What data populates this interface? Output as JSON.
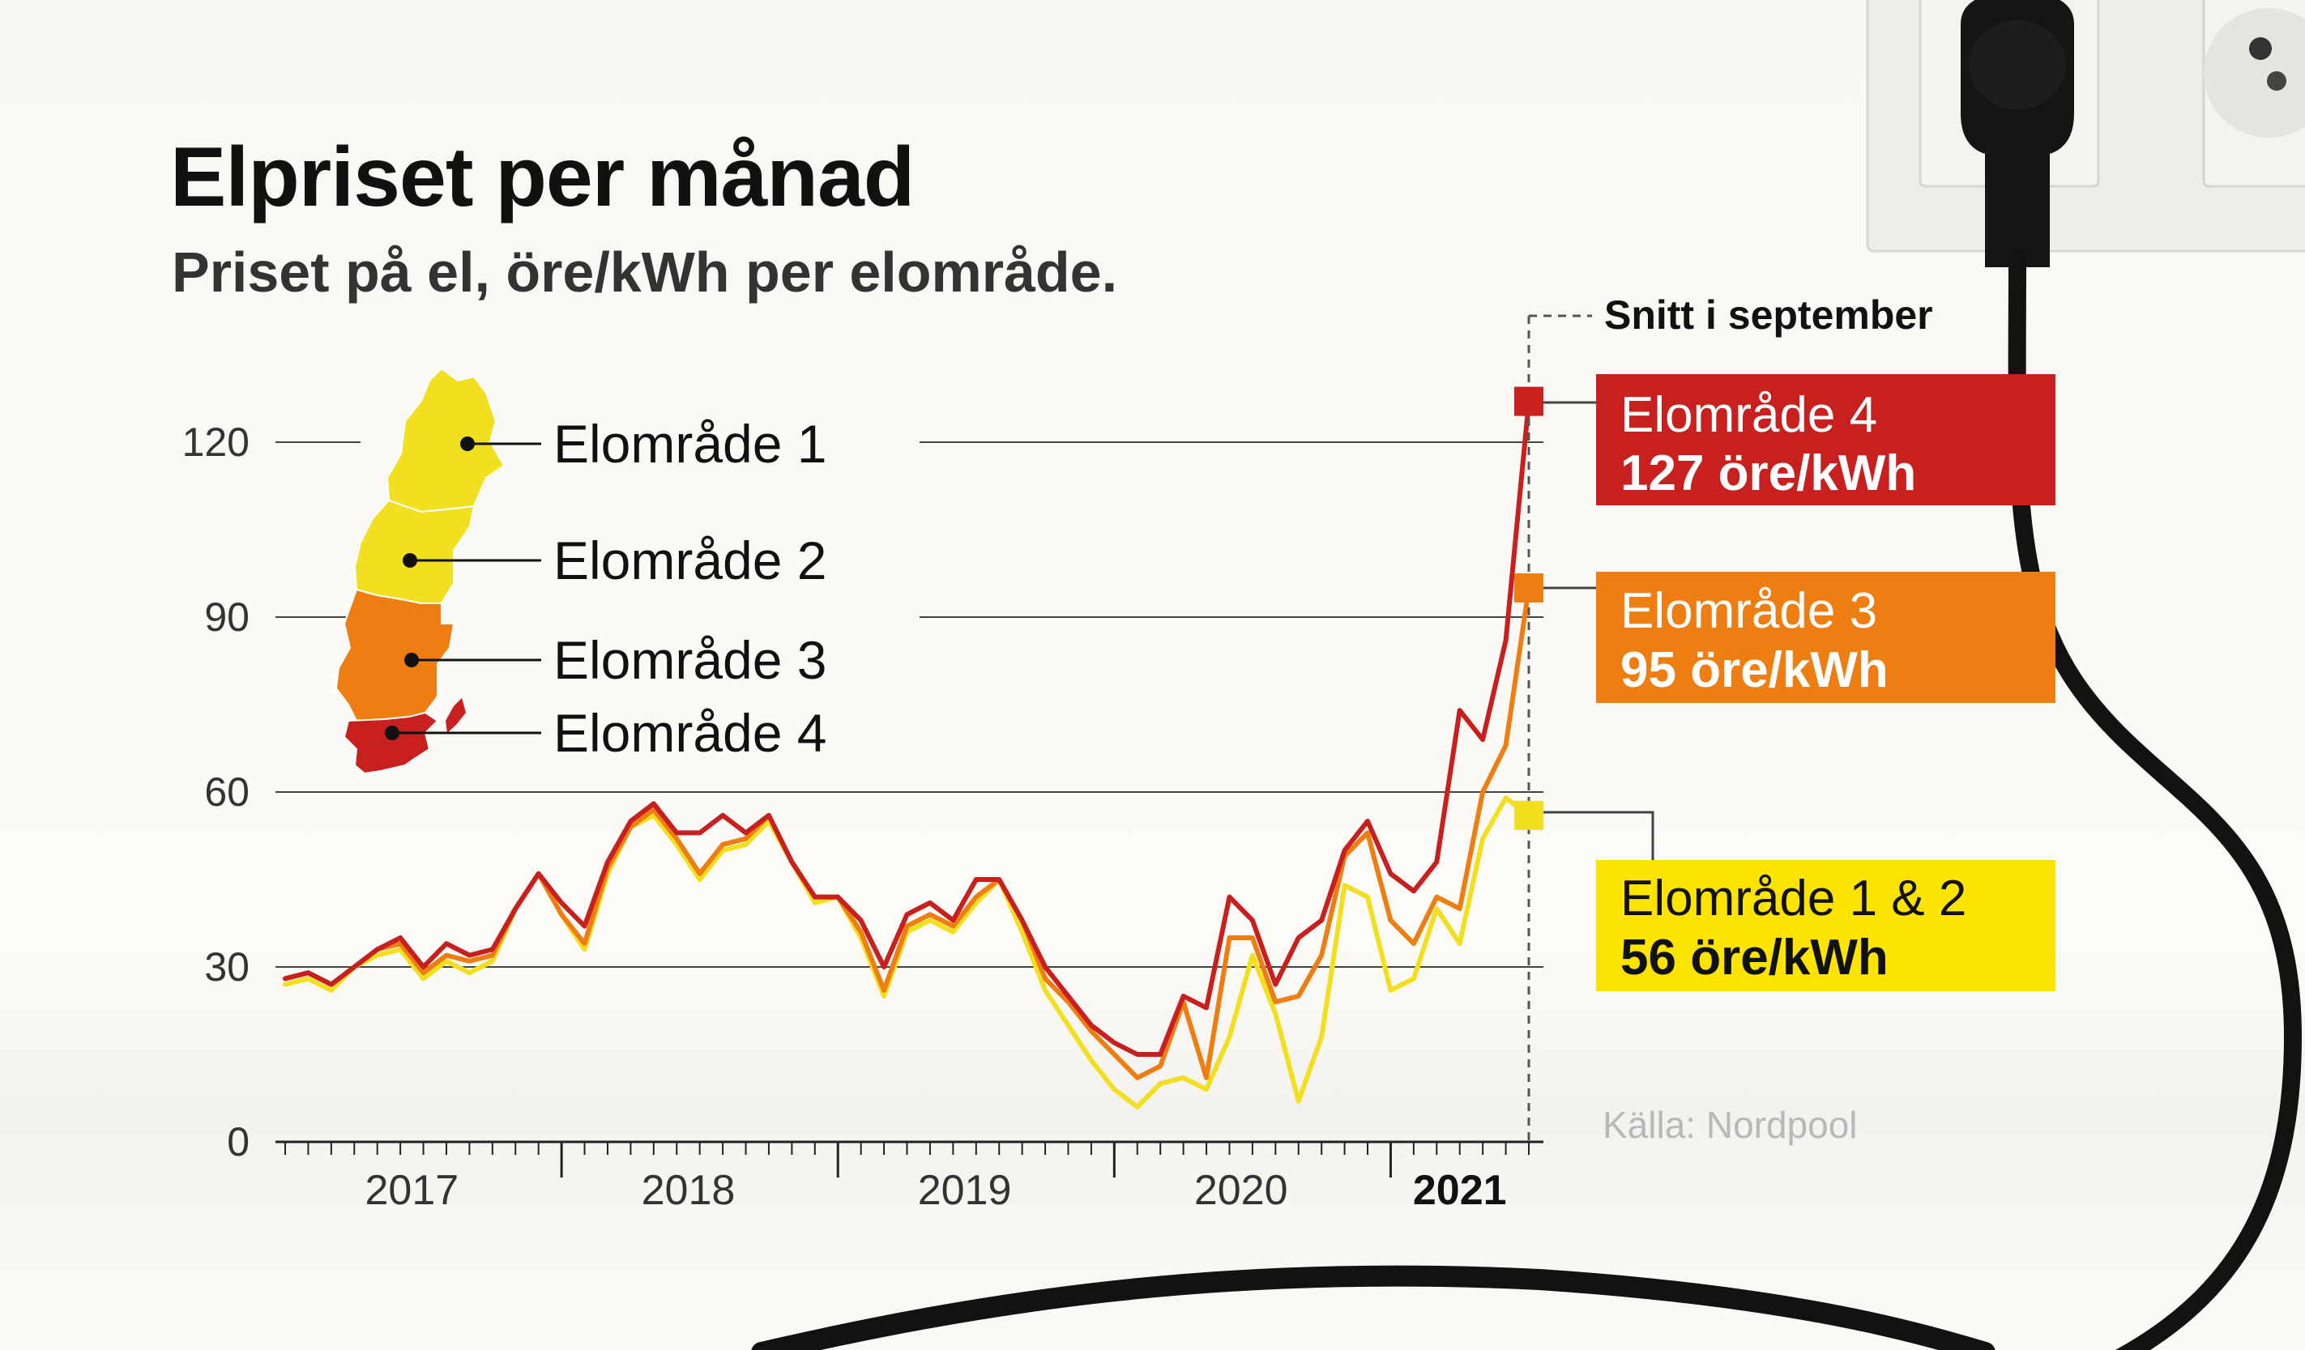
{
  "title": "Elpriset per månad",
  "subtitle": "Priset på el, öre/kWh per elområde.",
  "source": "Källa: Nordpool",
  "snitt_label": "Snitt i september",
  "map_labels": [
    "Elområde 1",
    "Elområde 2",
    "Elområde 3",
    "Elområde 4"
  ],
  "callouts": [
    {
      "area": "Elområde 4",
      "price": "127 öre/kWh",
      "bg": "#c8201f",
      "area_color": "#ffffff",
      "price_color": "#ffffff"
    },
    {
      "area": "Elområde 3",
      "price": "95 öre/kWh",
      "bg": "#ee7d12",
      "area_color": "#ffffff",
      "price_color": "#ffffff"
    },
    {
      "area": "Elområde 1 & 2",
      "price": "56 öre/kWh",
      "bg": "#fce300",
      "area_color": "#111111",
      "price_color": "#111111"
    }
  ],
  "colors": {
    "se12": "#f2e020",
    "se3": "#ee7d12",
    "se4": "#c8201f"
  },
  "icons": [
    "sweden-map-icon",
    "wall-outlet-icon",
    "power-plug-icon",
    "power-cable-icon"
  ],
  "chart_data": {
    "type": "line",
    "ylim": [
      0,
      130
    ],
    "yticks": [
      0,
      30,
      60,
      90,
      120
    ],
    "year_labels": [
      "2017",
      "2018",
      "2019",
      "2020",
      "2021"
    ],
    "x_start": "2017-01",
    "x_end": "2021-09",
    "series": [
      {
        "name": "Elområde 4",
        "color": "#c8201f",
        "values": [
          28,
          29,
          27,
          30,
          33,
          35,
          30,
          34,
          32,
          33,
          40,
          46,
          41,
          37,
          48,
          55,
          58,
          53,
          53,
          56,
          53,
          56,
          48,
          42,
          42,
          38,
          30,
          39,
          41,
          38,
          45,
          45,
          38,
          30,
          25,
          20,
          17,
          15,
          15,
          25,
          23,
          42,
          38,
          27,
          35,
          38,
          50,
          55,
          46,
          43,
          48,
          74,
          69,
          86,
          127
        ]
      },
      {
        "name": "Elområde 3",
        "color": "#ee7d12",
        "values": [
          28,
          29,
          27,
          30,
          33,
          34,
          29,
          32,
          31,
          32,
          40,
          46,
          39,
          34,
          47,
          54,
          57,
          52,
          46,
          51,
          52,
          56,
          48,
          42,
          42,
          36,
          26,
          37,
          39,
          37,
          42,
          45,
          38,
          28,
          24,
          19,
          15,
          11,
          13,
          24,
          11,
          35,
          35,
          24,
          25,
          32,
          49,
          53,
          38,
          34,
          42,
          40,
          60,
          68,
          95
        ]
      },
      {
        "name": "Elområde 1 & 2",
        "color": "#f2e020",
        "values": [
          27,
          28,
          26,
          30,
          32,
          33,
          28,
          31,
          29,
          31,
          40,
          46,
          39,
          33,
          46,
          54,
          56,
          51,
          45,
          50,
          51,
          55,
          48,
          41,
          42,
          35,
          25,
          36,
          38,
          36,
          41,
          45,
          36,
          26,
          20,
          14,
          9,
          6,
          10,
          11,
          9,
          18,
          32,
          22,
          7,
          18,
          44,
          42,
          26,
          28,
          40,
          34,
          52,
          59,
          56
        ]
      }
    ]
  }
}
